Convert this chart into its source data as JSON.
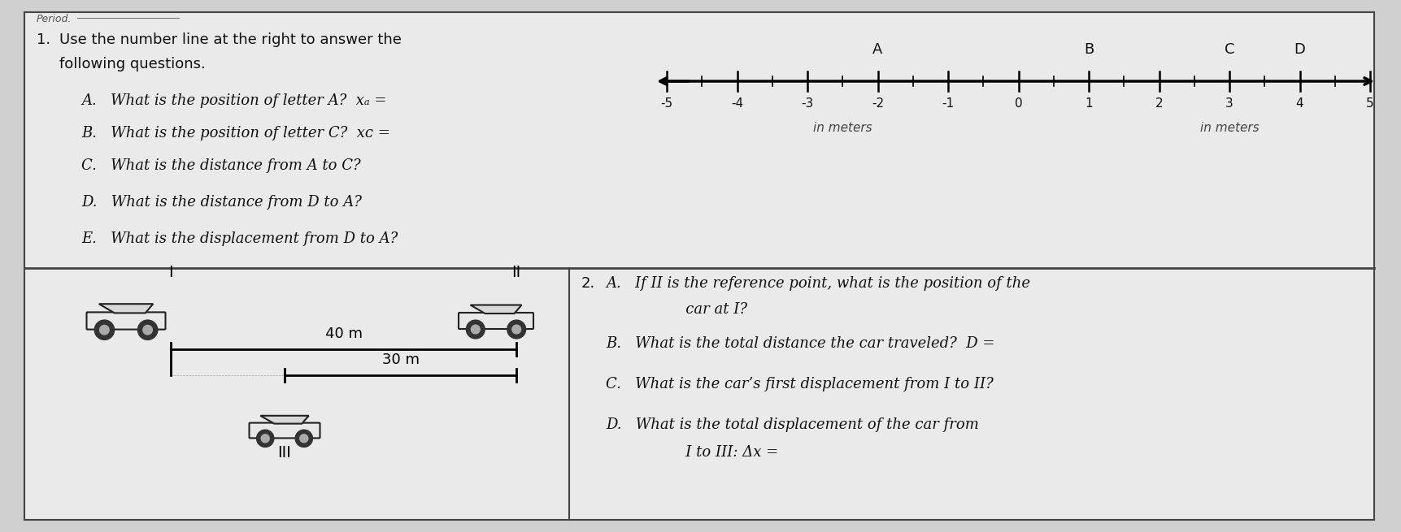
{
  "bg_color": "#d0d0d0",
  "sheet_bg": "#eaeaea",
  "border_color": "#444444",
  "text_color": "#111111",
  "period_label": "Period.",
  "q1_num": "1.",
  "q1_title1": "Use the number line at the right to answer the",
  "q1_title2": "following questions.",
  "q1A": "A.   What is the position of letter A?  xₐ =",
  "q1B": "B.   What is the position of letter C?  xᴄ =",
  "q1C": "C.   What is the distance from A to C?",
  "q1D": "D.   What is the distance from D to A?",
  "q1E": "E.   What is the displacement from D to A?",
  "numberline_labels": [
    -5,
    -4,
    -3,
    -2,
    -1,
    0,
    1,
    2,
    3,
    4,
    5
  ],
  "letter_positions": {
    "A": -2,
    "B": 1,
    "C": 3,
    "D": 4
  },
  "in_meters_left": "in meters",
  "in_meters_right": "in meters",
  "q2_num": "2.",
  "q2A1": "A.   If II is the reference point, what is the position of the",
  "q2A2": "       car at I?",
  "q2B": "B.   What is the total distance the car traveled?  D =",
  "q2C": "C.   What is the car’s first displacement from I to II?",
  "q2D1": "D.   What is the total displacement of the car from",
  "q2D2": "       I to III: Δx =",
  "label_I": "I",
  "label_II": "II",
  "label_III": "III",
  "dist_40": "40 m",
  "dist_30": "30 m"
}
